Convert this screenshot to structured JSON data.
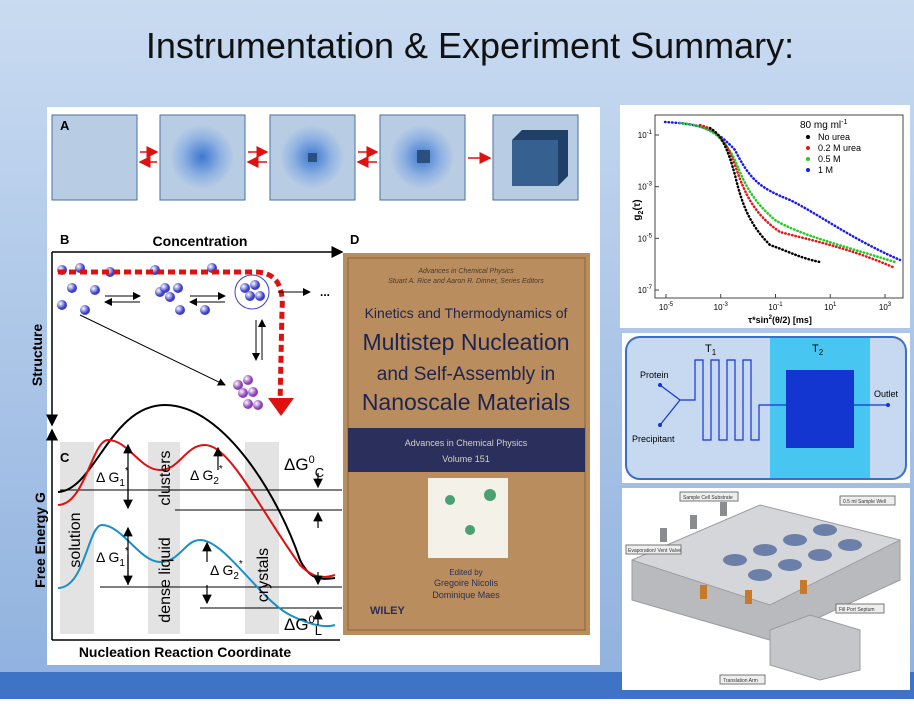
{
  "title": "Instrumentation & Experiment Summary:",
  "panel_a": {
    "label": "A"
  },
  "panel_b": {
    "label": "B",
    "x_axis": "Concentration",
    "y_axis": "Structure"
  },
  "panel_c": {
    "label": "C",
    "y_axis": "Free Energy G",
    "x_axis": "Nucleation Reaction Coordinate",
    "regions": [
      "solution",
      "clusters",
      "dense liquid",
      "crystals"
    ],
    "barriers": [
      {
        "base": "Δ G",
        "sub": "1",
        "sup": "*"
      },
      {
        "base": "Δ G",
        "sub": "2",
        "sup": "*"
      },
      {
        "base": "Δ G",
        "sub": "1",
        "sup": "*"
      },
      {
        "base": "Δ G",
        "sub": "2",
        "sup": "*"
      }
    ],
    "levels": [
      {
        "base": "ΔG",
        "sup": "0",
        "sub": "C"
      },
      {
        "base": "ΔG",
        "sup": "0",
        "sub": "L"
      }
    ]
  },
  "panel_d": {
    "label": "D",
    "series_line": "Advances in Chemical Physics",
    "editors_line": "Stuart A. Rice and Aaron R. Dinner, Series Editors",
    "title_lines": [
      "Kinetics and Thermodynamics of",
      "Multistep Nucleation",
      "and Self-Assembly in",
      "Nanoscale Materials"
    ],
    "band": [
      "Advances in Chemical Physics",
      "Volume 151"
    ],
    "edited_by": "Edited by",
    "editors": [
      "Gregoire Nicolis",
      "Dominique Maes"
    ],
    "publisher": "WILEY"
  },
  "correlation_plot": {
    "annotation": {
      "base": "80 mg ml",
      "sup": "-1"
    },
    "legend": [
      {
        "name": "No urea",
        "color": "#000000"
      },
      {
        "name": "0.2 M urea",
        "color": "#e8141c"
      },
      {
        "name": "0.5 M",
        "color": "#22cc22"
      },
      {
        "name": "1 M",
        "color": "#1a1aee"
      }
    ],
    "y_label": {
      "base": "g",
      "sub": "2",
      "rest": "(τ)"
    },
    "x_label": {
      "base": "τ*sin",
      "sup": "2",
      "rest": "(θ/2) [ms]"
    },
    "yticks": [
      {
        "base": "10",
        "exp": "-1"
      },
      {
        "base": "10",
        "exp": "-3"
      },
      {
        "base": "10",
        "exp": "-5"
      },
      {
        "base": "10",
        "exp": "-7"
      }
    ],
    "xticks": [
      {
        "base": "10",
        "exp": "-5"
      },
      {
        "base": "10",
        "exp": "-3"
      },
      {
        "base": "10",
        "exp": "-1"
      },
      {
        "base": "10",
        "exp": "1"
      },
      {
        "base": "10",
        "exp": "3"
      }
    ]
  },
  "microfluidic": {
    "t1": {
      "base": "T",
      "sub": "1"
    },
    "t2": {
      "base": "T",
      "sub": "2"
    },
    "inputs": [
      "Protein",
      "Precipitant"
    ],
    "output": "Outlet"
  },
  "sample_cell": {
    "labels": [
      "Sample Cell Substrate",
      "0.5 ml Sample Well",
      "Evaporation/ Vent Valve",
      "Fill Port Septum",
      "Translation Arm"
    ]
  }
}
